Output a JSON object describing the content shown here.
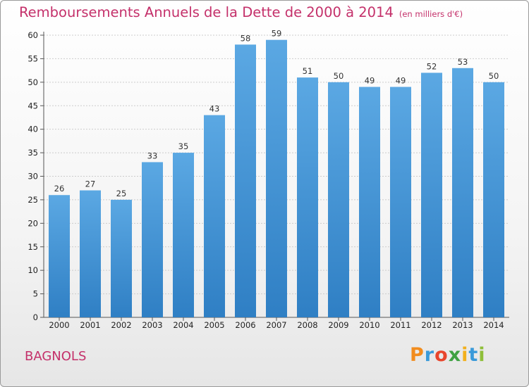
{
  "chart_data": {
    "type": "bar",
    "title": "Remboursements Annuels de la Dette de 2000 à 2014",
    "unit_note": "(en milliers d'€)",
    "categories": [
      "2000",
      "2001",
      "2002",
      "2003",
      "2004",
      "2005",
      "2006",
      "2007",
      "2008",
      "2009",
      "2010",
      "2011",
      "2012",
      "2013",
      "2014"
    ],
    "values": [
      26,
      27,
      25,
      33,
      35,
      43,
      58,
      59,
      51,
      50,
      49,
      49,
      52,
      53,
      50
    ],
    "ylim": [
      0,
      60
    ],
    "yticks": [
      0,
      5,
      10,
      15,
      20,
      25,
      30,
      35,
      40,
      45,
      50,
      55,
      60
    ],
    "grid": true,
    "xlabel": "",
    "ylabel": "",
    "bar_color_top": "#5ba8e3",
    "bar_color_bottom": "#2f7fc4"
  },
  "place": "BAGNOLS",
  "logo": {
    "letters": [
      "P",
      "r",
      "o",
      "x",
      "i",
      "t",
      "i"
    ],
    "colors": [
      "#f28c1e",
      "#3a9ad9",
      "#e8452c",
      "#3fa142",
      "#f2b01e",
      "#3a9ad9",
      "#8fbf3a"
    ]
  },
  "colors": {
    "title": "#c4306a",
    "grid": "#cccccc"
  }
}
